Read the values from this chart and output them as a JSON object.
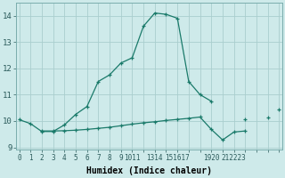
{
  "xlabel": "Humidex (Indice chaleur)",
  "x_values": [
    0,
    1,
    2,
    3,
    4,
    5,
    6,
    7,
    8,
    9,
    10,
    11,
    12,
    13,
    14,
    15,
    16,
    17,
    18,
    19,
    20,
    21,
    22,
    23
  ],
  "line1_y": [
    10.05,
    9.9,
    9.6,
    9.6,
    9.85,
    10.25,
    10.55,
    11.5,
    11.75,
    12.2,
    12.4,
    13.6,
    14.1,
    14.05,
    13.9,
    11.5,
    11.0,
    10.75,
    null,
    null,
    10.05,
    null,
    null,
    10.45
  ],
  "line2_y": [
    null,
    null,
    9.62,
    9.62,
    9.63,
    9.65,
    9.68,
    9.72,
    9.76,
    9.82,
    9.88,
    9.93,
    9.97,
    10.02,
    10.06,
    10.1,
    10.15,
    9.68,
    9.28,
    9.58,
    9.62,
    null,
    10.12,
    null
  ],
  "line_color": "#1a7a6a",
  "bg_color": "#ceeaea",
  "grid_color": "#aacece",
  "ylim": [
    8.9,
    14.5
  ],
  "xlim": [
    -0.3,
    23.3
  ],
  "yticks": [
    9,
    10,
    11,
    12,
    13,
    14
  ],
  "xtick_labels": [
    "0",
    "1",
    "2",
    "3",
    "4",
    "5",
    "6",
    "7",
    "8",
    "9",
    "1011",
    "",
    "1314",
    "",
    "151617",
    "",
    "",
    "1920",
    "",
    "212223",
    "",
    ""
  ]
}
